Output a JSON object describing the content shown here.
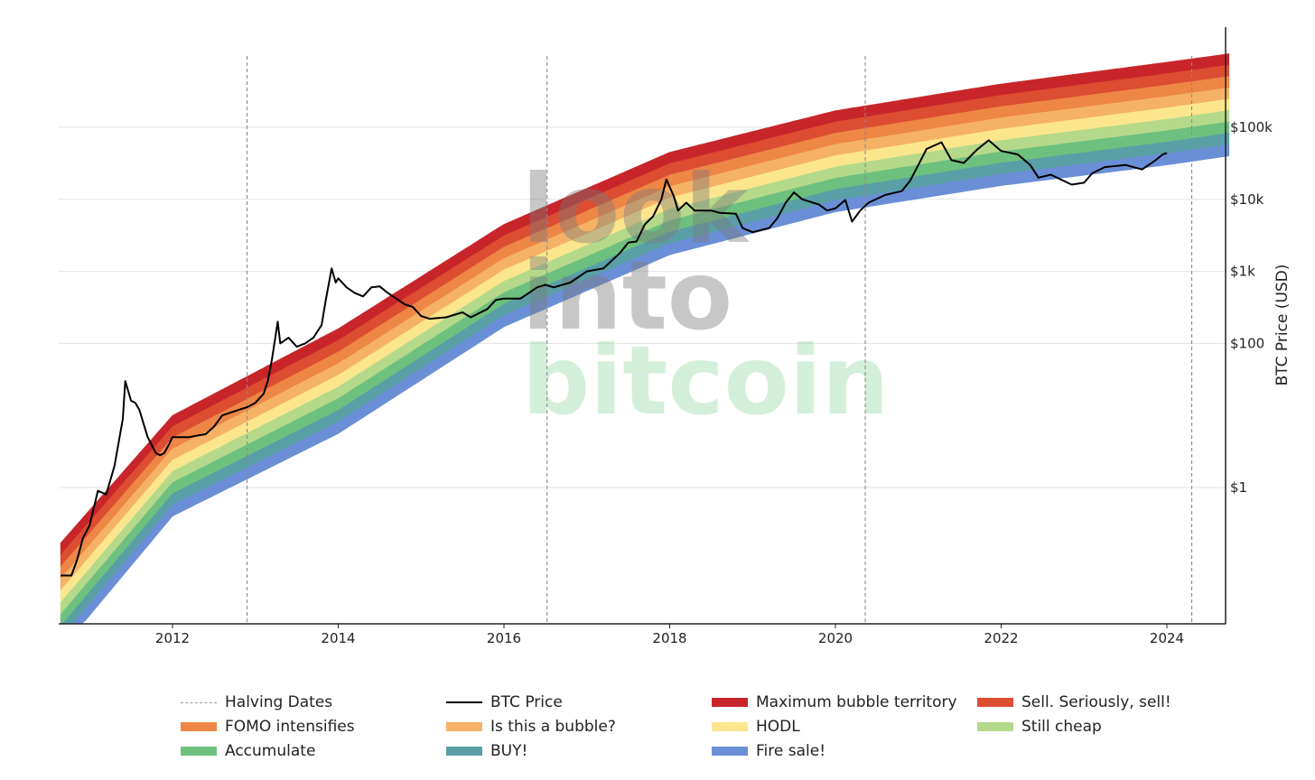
{
  "chart_data": {
    "type": "line",
    "title": "",
    "ylabel": "BTC Price (USD)",
    "yscale": "log",
    "ylim": [
      0.02,
      1500000
    ],
    "xlim": [
      2010.65,
      2024.75
    ],
    "x_ticks": [
      {
        "value": 2012,
        "label": "2012"
      },
      {
        "value": 2014,
        "label": "2014"
      },
      {
        "value": 2016,
        "label": "2016"
      },
      {
        "value": 2018,
        "label": "2018"
      },
      {
        "value": 2020,
        "label": "2020"
      },
      {
        "value": 2022,
        "label": "2022"
      },
      {
        "value": 2024,
        "label": "2024"
      }
    ],
    "y_ticks": [
      {
        "value": 1,
        "label": "$1"
      },
      {
        "value": 100,
        "label": "$100"
      },
      {
        "value": 1000,
        "label": "$1k"
      },
      {
        "value": 10000,
        "label": "$10k"
      },
      {
        "value": 100000,
        "label": "$100k"
      }
    ],
    "watermark": {
      "line1": "look",
      "line2": "into",
      "line3": "bitcoin"
    },
    "halving_dates": [
      2012.9,
      2016.52,
      2020.36,
      2024.3
    ],
    "rainbow_bands": [
      {
        "name": "Maximum bubble territory",
        "color": "#c8252a"
      },
      {
        "name": "Sell. Seriously, sell!",
        "color": "#dc4d32"
      },
      {
        "name": "FOMO intensifies",
        "color": "#ee8645"
      },
      {
        "name": "Is this a bubble?",
        "color": "#f5b267"
      },
      {
        "name": "HODL",
        "color": "#fbe68e"
      },
      {
        "name": "Still cheap",
        "color": "#b5d98a"
      },
      {
        "name": "Accumulate",
        "color": "#6ec07f"
      },
      {
        "name": "BUY!",
        "color": "#5a9fa6"
      },
      {
        "name": "Fire sale!",
        "color": "#6b8fd6"
      }
    ],
    "rainbow_model": {
      "bottom_edge": [
        [
          2010.65,
          0.0055
        ],
        [
          2012,
          0.4
        ],
        [
          2014,
          5.6
        ],
        [
          2016,
          170
        ],
        [
          2018,
          1700
        ],
        [
          2020,
          6700
        ],
        [
          2022,
          15500
        ],
        [
          2024,
          30000
        ],
        [
          2024.75,
          40000
        ]
      ],
      "top_edge": [
        [
          2010.65,
          0.17
        ],
        [
          2012,
          10
        ],
        [
          2014,
          160
        ],
        [
          2016,
          4500
        ],
        [
          2018,
          45000
        ],
        [
          2020,
          170000
        ],
        [
          2022,
          400000
        ],
        [
          2024,
          800000
        ],
        [
          2024.75,
          1050000
        ]
      ]
    },
    "series": [
      {
        "name": "BTC Price",
        "color": "#000000",
        "points": [
          [
            2010.65,
            0.06
          ],
          [
            2010.78,
            0.06
          ],
          [
            2010.85,
            0.1
          ],
          [
            2010.92,
            0.2
          ],
          [
            2011.0,
            0.3
          ],
          [
            2011.1,
            0.9
          ],
          [
            2011.2,
            0.8
          ],
          [
            2011.3,
            2.0
          ],
          [
            2011.4,
            9.0
          ],
          [
            2011.43,
            30.0
          ],
          [
            2011.5,
            16.0
          ],
          [
            2011.55,
            15.0
          ],
          [
            2011.6,
            12.0
          ],
          [
            2011.7,
            5.0
          ],
          [
            2011.8,
            3.0
          ],
          [
            2011.85,
            2.8
          ],
          [
            2011.9,
            3.0
          ],
          [
            2011.96,
            4.0
          ],
          [
            2012.0,
            5.0
          ],
          [
            2012.2,
            5.0
          ],
          [
            2012.4,
            5.5
          ],
          [
            2012.5,
            7.0
          ],
          [
            2012.6,
            10.0
          ],
          [
            2012.8,
            12.0
          ],
          [
            2012.9,
            13.0
          ],
          [
            2013.0,
            15.0
          ],
          [
            2013.1,
            20.0
          ],
          [
            2013.15,
            30.0
          ],
          [
            2013.2,
            60.0
          ],
          [
            2013.27,
            200.0
          ],
          [
            2013.3,
            100.0
          ],
          [
            2013.4,
            120.0
          ],
          [
            2013.5,
            90.0
          ],
          [
            2013.6,
            100.0
          ],
          [
            2013.7,
            120.0
          ],
          [
            2013.8,
            180.0
          ],
          [
            2013.85,
            400.0
          ],
          [
            2013.92,
            1100.0
          ],
          [
            2013.97,
            700.0
          ],
          [
            2014.0,
            800.0
          ],
          [
            2014.1,
            600.0
          ],
          [
            2014.2,
            500.0
          ],
          [
            2014.3,
            450.0
          ],
          [
            2014.4,
            600.0
          ],
          [
            2014.5,
            620.0
          ],
          [
            2014.6,
            500.0
          ],
          [
            2014.7,
            420.0
          ],
          [
            2014.8,
            350.0
          ],
          [
            2014.9,
            320.0
          ],
          [
            2015.0,
            240.0
          ],
          [
            2015.1,
            220.0
          ],
          [
            2015.3,
            230.0
          ],
          [
            2015.5,
            270.0
          ],
          [
            2015.6,
            230.0
          ],
          [
            2015.8,
            300.0
          ],
          [
            2015.9,
            400.0
          ],
          [
            2016.0,
            420.0
          ],
          [
            2016.2,
            420.0
          ],
          [
            2016.4,
            600.0
          ],
          [
            2016.5,
            650.0
          ],
          [
            2016.6,
            600.0
          ],
          [
            2016.8,
            700.0
          ],
          [
            2017.0,
            1000.0
          ],
          [
            2017.2,
            1100.0
          ],
          [
            2017.4,
            1800.0
          ],
          [
            2017.5,
            2500.0
          ],
          [
            2017.6,
            2600.0
          ],
          [
            2017.7,
            4500.0
          ],
          [
            2017.8,
            5800.0
          ],
          [
            2017.9,
            10000.0
          ],
          [
            2017.96,
            19000.0
          ],
          [
            2018.05,
            11000.0
          ],
          [
            2018.1,
            7000.0
          ],
          [
            2018.2,
            9000.0
          ],
          [
            2018.3,
            7000.0
          ],
          [
            2018.5,
            7000.0
          ],
          [
            2018.6,
            6500.0
          ],
          [
            2018.8,
            6300.0
          ],
          [
            2018.88,
            4000.0
          ],
          [
            2019.0,
            3500.0
          ],
          [
            2019.2,
            4000.0
          ],
          [
            2019.3,
            5500.0
          ],
          [
            2019.4,
            9000.0
          ],
          [
            2019.5,
            12500.0
          ],
          [
            2019.6,
            10000.0
          ],
          [
            2019.8,
            8500.0
          ],
          [
            2019.9,
            7000.0
          ],
          [
            2020.0,
            7500.0
          ],
          [
            2020.12,
            9800.0
          ],
          [
            2020.2,
            4900.0
          ],
          [
            2020.3,
            7000.0
          ],
          [
            2020.4,
            9000.0
          ],
          [
            2020.6,
            11500.0
          ],
          [
            2020.8,
            13000.0
          ],
          [
            2020.9,
            18000.0
          ],
          [
            2021.0,
            30000.0
          ],
          [
            2021.1,
            50000.0
          ],
          [
            2021.28,
            62000.0
          ],
          [
            2021.4,
            35000.0
          ],
          [
            2021.55,
            32000.0
          ],
          [
            2021.7,
            48000.0
          ],
          [
            2021.85,
            66000.0
          ],
          [
            2022.0,
            47000.0
          ],
          [
            2022.2,
            42000.0
          ],
          [
            2022.35,
            30000.0
          ],
          [
            2022.45,
            20000.0
          ],
          [
            2022.6,
            22000.0
          ],
          [
            2022.85,
            16000.0
          ],
          [
            2023.0,
            17000.0
          ],
          [
            2023.1,
            23000.0
          ],
          [
            2023.25,
            28000.0
          ],
          [
            2023.5,
            30000.0
          ],
          [
            2023.7,
            26000.0
          ],
          [
            2023.85,
            34000.0
          ],
          [
            2023.95,
            42000.0
          ],
          [
            2024.0,
            44000.0
          ]
        ]
      }
    ]
  },
  "legend": {
    "items": [
      {
        "label": "Halving Dates",
        "swatch": "dash",
        "color": "#9a9a9a"
      },
      {
        "label": "BTC Price",
        "swatch": "line",
        "color": "#000000"
      },
      {
        "label": "Maximum bubble territory",
        "swatch": "box",
        "color": "#c8252a"
      },
      {
        "label": "Sell. Seriously, sell!",
        "swatch": "box",
        "color": "#dc4d32"
      },
      {
        "label": "FOMO intensifies",
        "swatch": "box",
        "color": "#ee8645"
      },
      {
        "label": "Is this a bubble?",
        "swatch": "box",
        "color": "#f5b267"
      },
      {
        "label": "HODL",
        "swatch": "box",
        "color": "#fbe68e"
      },
      {
        "label": "Still cheap",
        "swatch": "box",
        "color": "#b5d98a"
      },
      {
        "label": "Accumulate",
        "swatch": "box",
        "color": "#6ec07f"
      },
      {
        "label": "BUY!",
        "swatch": "box",
        "color": "#5a9fa6"
      },
      {
        "label": "Fire sale!",
        "swatch": "box",
        "color": "#6b8fd6"
      }
    ]
  }
}
